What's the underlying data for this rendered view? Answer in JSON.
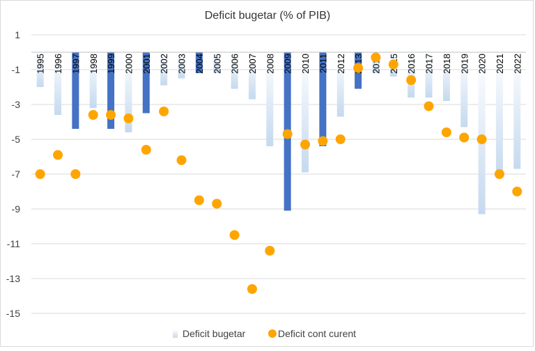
{
  "chart_data": {
    "type": "bar",
    "title": "Deficit bugetar (% of PIB)",
    "xlabel": "",
    "ylabel": "",
    "ylim": [
      -15,
      1
    ],
    "y_ticks": [
      1,
      -1,
      -3,
      -5,
      -7,
      -9,
      -11,
      -13,
      -15
    ],
    "grid": true,
    "legend_position": "bottom",
    "categories": [
      "1995",
      "1996",
      "1997",
      "1998",
      "1999",
      "2000",
      "2001",
      "2002",
      "2003",
      "2004",
      "2005",
      "2006",
      "2007",
      "2008",
      "2009",
      "2010",
      "2011",
      "2012",
      "2013",
      "2014",
      "2015",
      "2016",
      "2017",
      "2018",
      "2019",
      "2020",
      "2021",
      "2022"
    ],
    "highlighted_categories": [
      "1997",
      "1999",
      "2001",
      "2004",
      "2009",
      "2011",
      "2013"
    ],
    "series": [
      {
        "name": "Deficit bugetar",
        "type": "bar",
        "color_light": "#c5d9ef",
        "color_dark": "#4472c4",
        "values": [
          -2.0,
          -3.6,
          -4.4,
          -3.2,
          -4.4,
          -4.6,
          -3.5,
          -1.9,
          -1.5,
          -1.2,
          -1.2,
          -2.1,
          -2.7,
          -5.4,
          -9.1,
          -6.9,
          -5.4,
          -3.7,
          -2.1,
          -1.2,
          -1.4,
          -2.6,
          -2.6,
          -2.8,
          -4.3,
          -9.3,
          -7.2,
          -6.7
        ]
      },
      {
        "name": "Deficit cont curent",
        "type": "scatter",
        "color": "#ffa500",
        "values": [
          -7.0,
          -5.9,
          -7.0,
          -3.6,
          -3.6,
          -3.8,
          -5.6,
          -3.4,
          -6.2,
          -8.5,
          -8.7,
          -10.5,
          -13.6,
          -11.4,
          -4.7,
          -5.3,
          -5.1,
          -5.0,
          -0.9,
          -0.3,
          -0.7,
          -1.6,
          -3.1,
          -4.6,
          -4.9,
          -5.0,
          -7.0,
          -8.0
        ]
      }
    ]
  }
}
